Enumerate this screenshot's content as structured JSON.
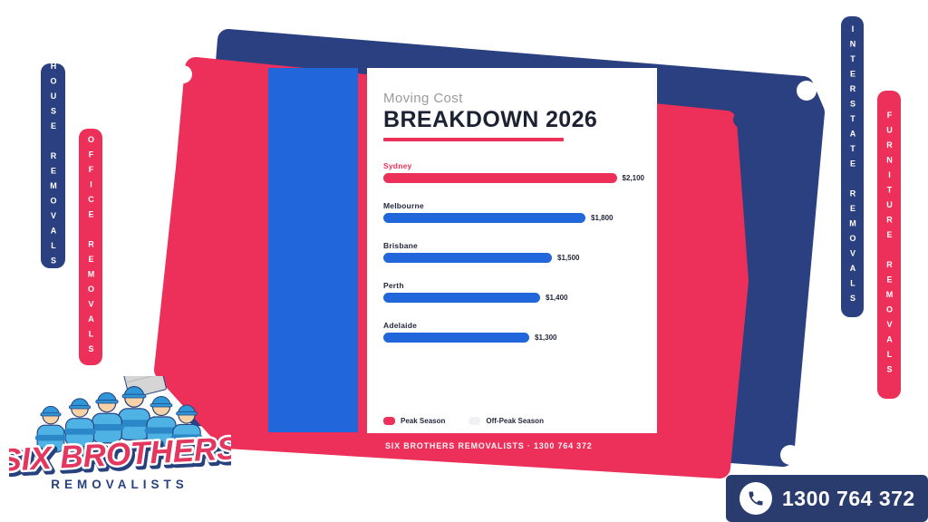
{
  "colors": {
    "navy": "#2B4080",
    "navy_dark": "#2A3C6E",
    "pink": "#EC3059",
    "blue": "#2166DB",
    "title_ink": "#1C2233",
    "subtitle_gray": "#9B9B9B",
    "off_peak_swatch": "#F0F1F4",
    "background": "#FFFFFF"
  },
  "banners": {
    "left": [
      {
        "label": "HOUSE REMOVALS",
        "color": "#2B4080"
      },
      {
        "label": "OFFICE REMOVALS",
        "color": "#EC3059"
      }
    ],
    "right": [
      {
        "label": "INTERSTATE REMOVALS",
        "color": "#2B4080"
      },
      {
        "label": "FURNITURE REMOVALS",
        "color": "#EC3059"
      }
    ]
  },
  "chart_data": {
    "type": "bar",
    "orientation": "horizontal",
    "subtitle": "Moving Cost",
    "title": "BREAKDOWN 2026",
    "categories": [
      "Sydney",
      "Melbourne",
      "Brisbane",
      "Perth",
      "Adelaide"
    ],
    "values": [
      2100,
      1800,
      1500,
      1400,
      1300
    ],
    "value_labels": [
      "$2,100",
      "$1,800",
      "$1,500",
      "$1,400",
      "$1,300"
    ],
    "highlight_category": "Sydney",
    "bar_color_default": "#2166DB",
    "bar_color_highlight": "#EC3059",
    "xlim": [
      0,
      2100
    ],
    "grid": false,
    "legend": [
      {
        "label": "Peak Season",
        "color": "#EC3059"
      },
      {
        "label": "Off-Peak Season",
        "color": "#F0F1F4"
      }
    ],
    "legend_position": "bottom"
  },
  "footer": {
    "text": "SIX BROTHERS REMOVALISTS  ·  1300 764 372"
  },
  "logo": {
    "line1": "SIX BROTHERS",
    "line2": "REMOVALISTS"
  },
  "phone_button": {
    "number": "1300 764 372",
    "icon": "phone-icon"
  }
}
